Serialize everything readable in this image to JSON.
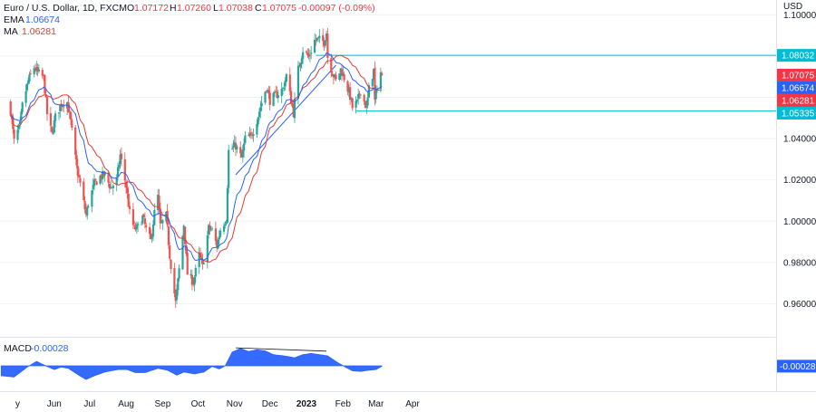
{
  "chart_data": [
    {
      "type": "candlestick",
      "instrument": "Euro / U.S. Dollar, 1D, FXCM",
      "ohlc_prefix": {
        "o": "O",
        "h": "H",
        "l": "L",
        "c": "C"
      },
      "ohlc": {
        "open": "1.07172",
        "high": "1.07260",
        "low": "1.07038",
        "close": "1.07075",
        "change": "-0.00097 (-0.09%)"
      },
      "currency_label": "USD",
      "indicators": [
        {
          "name": "EMA",
          "value": "1.06674",
          "color": "#2962ff"
        },
        {
          "name": "MA",
          "value": "1.06281",
          "color": "#e53935"
        }
      ],
      "y_range": [
        0.9475,
        1.1045
      ],
      "y_ticks": [
        "1.10000",
        "1.08000",
        "1.06000",
        "1.04000",
        "1.02000",
        "1.00000",
        "0.98000",
        "0.96000"
      ],
      "x_labels": [
        "y",
        "Jun",
        "Jul",
        "Aug",
        "Sep",
        "Oct",
        "Nov",
        "Dec",
        "2023",
        "Feb",
        "Mar",
        "Apr"
      ],
      "price_labels": [
        {
          "value": "1.08032",
          "price": 1.08032,
          "color": "#00bcd4"
        },
        {
          "value": "1.07075",
          "price": 1.07075,
          "color": "#f23645"
        },
        {
          "value": "1.06674",
          "price": 1.06674,
          "color": "#2962ff"
        },
        {
          "value": "1.06281",
          "price": 1.06281,
          "color": "#f23645"
        },
        {
          "value": "1.05335",
          "price": 1.05335,
          "color": "#00bcd4"
        }
      ],
      "horizontal_levels": [
        1.08032,
        1.05335
      ],
      "trendline": {
        "from": [
          "Nov 17 2022",
          1.0225
        ],
        "to": [
          "Feb 10 2023",
          1.0755
        ]
      },
      "colors": {
        "up": "#26a69a",
        "down": "#ef5350",
        "level": "#00bcd4",
        "trendline": "#2962ff"
      },
      "close_anchors": [
        [
          "May 10 2022",
          1.0535
        ],
        [
          "May 13 2022",
          1.0385
        ],
        [
          "May 18 2022",
          1.0465
        ],
        [
          "May 20 2022",
          1.056
        ],
        [
          "May 25 2022",
          1.068
        ],
        [
          "May 30 2022",
          1.0745
        ],
        [
          "Jun 2 2022",
          1.072
        ],
        [
          "Jun 7 2022",
          1.0695
        ],
        [
          "Jun 10 2022",
          1.052
        ],
        [
          "Jun 14 2022",
          1.042
        ],
        [
          "Jun 17 2022",
          1.0505
        ],
        [
          "Jun 22 2022",
          1.057
        ],
        [
          "Jun 27 2022",
          1.0575
        ],
        [
          "Jun 30 2022",
          1.048
        ],
        [
          "Jul 5 2022",
          1.026
        ],
        [
          "Jul 8 2022",
          1.018
        ],
        [
          "Jul 13 2022",
          1.003
        ],
        [
          "Jul 15 2022",
          1.0085
        ],
        [
          "Jul 20 2022",
          1.018
        ],
        [
          "Jul 25 2022",
          1.0215
        ],
        [
          "Jul 29 2022",
          1.0225
        ],
        [
          "Aug 3 2022",
          1.016
        ],
        [
          "Aug 8 2022",
          1.02
        ],
        [
          "Aug 11 2022",
          1.032
        ],
        [
          "Aug 16 2022",
          1.017
        ],
        [
          "Aug 19 2022",
          1.004
        ],
        [
          "Aug 23 2022",
          0.996
        ],
        [
          "Aug 26 2022",
          0.997
        ],
        [
          "Aug 30 2022",
          1.002
        ],
        [
          "Sep 2 2022",
          0.996
        ],
        [
          "Sep 6 2022",
          0.9905
        ],
        [
          "Sep 9 2022",
          1.004
        ],
        [
          "Sep 12 2022",
          1.012
        ],
        [
          "Sep 14 2022",
          0.9975
        ],
        [
          "Sep 19 2022",
          1.0025
        ],
        [
          "Sep 22 2022",
          0.9835
        ],
        [
          "Sep 27 2022",
          0.9605
        ],
        [
          "Sep 29 2022",
          0.971
        ],
        [
          "Oct 4 2022",
          0.9985
        ],
        [
          "Oct 7 2022",
          0.9745
        ],
        [
          "Oct 12 2022",
          0.9705
        ],
        [
          "Oct 17 2022",
          0.9835
        ],
        [
          "Oct 20 2022",
          0.978
        ],
        [
          "Oct 25 2022",
          0.9965
        ],
        [
          "Oct 28 2022",
          0.9955
        ],
        [
          "Nov 1 2022",
          0.988
        ],
        [
          "Nov 4 2022",
          0.996
        ],
        [
          "Nov 9 2022",
          1.0015
        ],
        [
          "Nov 11 2022",
          1.034
        ],
        [
          "Nov 17 2022",
          1.0365
        ],
        [
          "Nov 22 2022",
          1.0305
        ],
        [
          "Nov 25 2022",
          1.04
        ],
        [
          "Nov 30 2022",
          1.041
        ],
        [
          "Dec 5 2022",
          1.049
        ],
        [
          "Dec 8 2022",
          1.0555
        ],
        [
          "Dec 13 2022",
          1.065
        ],
        [
          "Dec 16 2022",
          1.0585
        ],
        [
          "Dec 21 2022",
          1.061
        ],
        [
          "Dec 27 2022",
          1.064
        ],
        [
          "Dec 30 2022",
          1.0705
        ],
        [
          "Jan 5 2023",
          1.0525
        ],
        [
          "Jan 9 2023",
          1.0735
        ],
        [
          "Jan 13 2023",
          1.083
        ],
        [
          "Jan 18 2023",
          1.0795
        ],
        [
          "Jan 23 2023",
          1.0875
        ],
        [
          "Jan 26 2023",
          1.088
        ],
        [
          "Jan 31 2023",
          1.087
        ],
        [
          "Feb 2 2023",
          1.0915
        ],
        [
          "Feb 3 2023",
          1.0795
        ],
        [
          "Feb 7 2023",
          1.072
        ],
        [
          "Feb 10 2023",
          1.068
        ],
        [
          "Feb 14 2023",
          1.0735
        ],
        [
          "Feb 17 2023",
          1.0695
        ],
        [
          "Feb 22 2023",
          1.0605
        ],
        [
          "Feb 24 2023",
          1.055
        ],
        [
          "Feb 28 2023",
          1.0575
        ],
        [
          "Mar 3 2023",
          1.0635
        ],
        [
          "Mar 8 2023",
          1.0545
        ],
        [
          "Mar 10 2023",
          1.064
        ],
        [
          "Mar 14 2023",
          1.073
        ],
        [
          "Mar 15 2023",
          1.058
        ],
        [
          "Mar 17 2023",
          1.066
        ],
        [
          "Mar 20 2023",
          1.072
        ],
        [
          "Mar 21 2023",
          1.07075
        ]
      ]
    },
    {
      "type": "area",
      "title": "MACD",
      "value": "-0.00028",
      "label_value": "-0.00028",
      "color": "#2962ff",
      "y_range": [
        -0.0175,
        0.0175
      ],
      "divergence_line": {
        "from": [
          "Nov 17 2022",
          0.0145
        ],
        "to": [
          "Feb 2 2023",
          0.0118
        ]
      },
      "anchors": [
        [
          "May 2 2022",
          -0.008
        ],
        [
          "May 13 2022",
          -0.009
        ],
        [
          "May 24 2022",
          -0.001
        ],
        [
          "Jun 1 2022",
          0.0035
        ],
        [
          "Jun 10 2022",
          -0.0005
        ],
        [
          "Jun 16 2022",
          -0.003
        ],
        [
          "Jun 22 2022",
          -0.001
        ],
        [
          "Jun 28 2022",
          -0.002
        ],
        [
          "Jul 6 2022",
          -0.007
        ],
        [
          "Jul 13 2022",
          -0.011
        ],
        [
          "Jul 20 2022",
          -0.008
        ],
        [
          "Jul 29 2022",
          -0.005
        ],
        [
          "Aug 9 2022",
          -0.003
        ],
        [
          "Aug 17 2022",
          -0.003
        ],
        [
          "Aug 24 2022",
          -0.0055
        ],
        [
          "Sep 1 2022",
          -0.0055
        ],
        [
          "Sep 12 2022",
          -0.002
        ],
        [
          "Sep 20 2022",
          -0.0035
        ],
        [
          "Sep 28 2022",
          -0.0075
        ],
        [
          "Oct 4 2022",
          -0.005
        ],
        [
          "Oct 13 2022",
          -0.0065
        ],
        [
          "Oct 21 2022",
          -0.005
        ],
        [
          "Oct 28 2022",
          -0.0005
        ],
        [
          "Nov 3 2022",
          -0.0025
        ],
        [
          "Nov 8 2022",
          0.0
        ],
        [
          "Nov 14 2022",
          0.011
        ],
        [
          "Nov 21 2022",
          0.014
        ],
        [
          "Nov 28 2022",
          0.0115
        ],
        [
          "Dec 5 2022",
          0.013
        ],
        [
          "Dec 12 2022",
          0.012
        ],
        [
          "Dec 19 2022",
          0.009
        ],
        [
          "Dec 28 2022",
          0.008
        ],
        [
          "Jan 6 2023",
          0.0065
        ],
        [
          "Jan 13 2023",
          0.009
        ],
        [
          "Jan 20 2023",
          0.01
        ],
        [
          "Jan 27 2023",
          0.009
        ],
        [
          "Feb 3 2023",
          0.008
        ],
        [
          "Feb 10 2023",
          0.0035
        ],
        [
          "Feb 17 2023",
          -0.0005
        ],
        [
          "Feb 24 2023",
          -0.004
        ],
        [
          "Mar 3 2023",
          -0.0045
        ],
        [
          "Mar 10 2023",
          -0.0035
        ],
        [
          "Mar 16 2023",
          -0.003
        ],
        [
          "Mar 21 2023",
          -0.00028
        ]
      ]
    }
  ]
}
